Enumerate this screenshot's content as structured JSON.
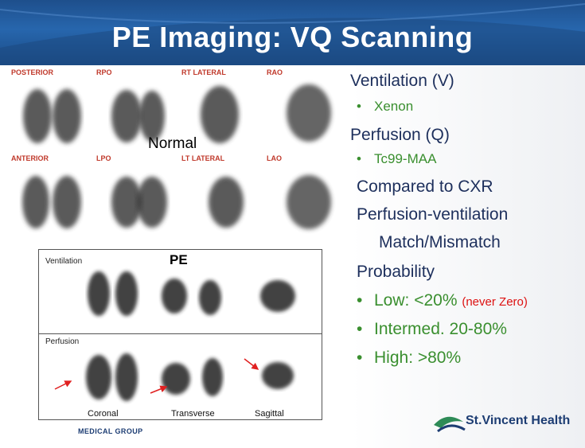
{
  "title": "PE Imaging:  VQ Scanning",
  "normal_scan": {
    "views": [
      "POSTERIOR",
      "RPO",
      "RT LATERAL",
      "RAO",
      "ANTERIOR",
      "LPO",
      "LT LATERAL",
      "LAO"
    ],
    "caption": "Normal"
  },
  "pe_scan": {
    "caption": "PE",
    "ventilation_label": "Ventilation",
    "perfusion_label": "Perfusion",
    "views": [
      "Coronal",
      "Transverse",
      "Sagittal"
    ],
    "footer": "MEDICAL GROUP"
  },
  "bullets": {
    "ventilation": "Ventilation (V)",
    "xenon": "Xenon",
    "perfusion": "Perfusion (Q)",
    "tc99": "Tc99-MAA",
    "compared": "Compared to CXR",
    "pv": "Perfusion-ventilation",
    "match": "Match/Mismatch",
    "probability": "Probability",
    "low": "Low:  <20%",
    "never_zero": "(never Zero)",
    "intermed": "Intermed. 20-80%",
    "high": "High:  >80%"
  },
  "logo": {
    "text": "St.Vincent Health"
  },
  "colors": {
    "header": "#2766ad",
    "heading_text": "#1d2f5c",
    "bullet_green": "#3a8f2f",
    "warning_red": "#d11111"
  }
}
